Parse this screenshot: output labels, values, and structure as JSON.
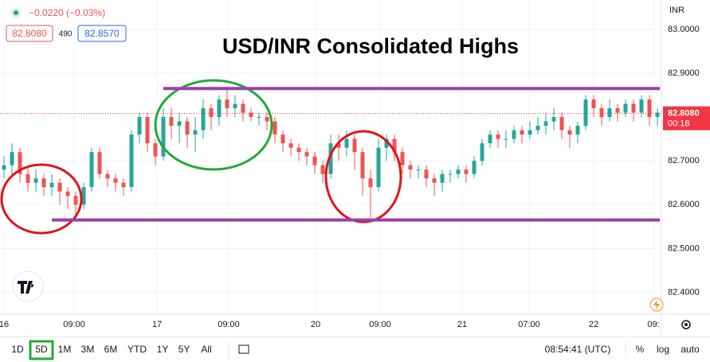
{
  "chart_data": {
    "type": "candlestick",
    "title": "USD/INR Consolidated Highs",
    "currency": "INR",
    "header": {
      "change": "−0.0220 (−0.03%)",
      "sell": "82.8080",
      "spread": "490",
      "buy": "82.8570"
    },
    "price_label": {
      "value": 82.808,
      "label": "82.8080",
      "countdown": "00:18",
      "color": "#f23645"
    },
    "levels": {
      "values": [
        82.865,
        82.565
      ],
      "color": "#9c3fa8"
    },
    "up_color": "#26a69a",
    "down_color": "#ef5350",
    "open": [
      82.68,
      82.69,
      82.72,
      82.67,
      82.65,
      82.66,
      82.64,
      82.65,
      82.63,
      82.62,
      82.6,
      82.64,
      82.72,
      82.67,
      82.66,
      82.65,
      82.64,
      82.76,
      82.8,
      82.74,
      82.71,
      82.8,
      82.78,
      82.79,
      82.76,
      82.77,
      82.82,
      82.8,
      82.84,
      82.82,
      82.83,
      82.81,
      82.8,
      82.8,
      82.79,
      82.76,
      82.74,
      82.73,
      82.72,
      82.71,
      82.69,
      82.67,
      82.74,
      82.73,
      82.75,
      82.72,
      82.66,
      82.64,
      82.73,
      82.75,
      82.72,
      82.69,
      82.68,
      82.68,
      82.66,
      82.65,
      82.67,
      82.67,
      82.68,
      82.67,
      82.7,
      82.74,
      82.76,
      82.75,
      82.75,
      82.77,
      82.76,
      82.77,
      82.78,
      82.79,
      82.8,
      82.77,
      82.76,
      82.78,
      82.84,
      82.82,
      82.8,
      82.82,
      82.81,
      82.83,
      82.81,
      82.84,
      82.8
    ],
    "high": [
      82.71,
      82.74,
      82.73,
      82.69,
      82.68,
      82.67,
      82.67,
      82.66,
      82.64,
      82.63,
      82.65,
      82.73,
      82.73,
      82.68,
      82.67,
      82.66,
      82.77,
      82.81,
      82.81,
      82.75,
      82.82,
      82.82,
      82.81,
      82.8,
      82.8,
      82.84,
      82.83,
      82.85,
      82.87,
      82.85,
      82.84,
      82.82,
      82.81,
      82.81,
      82.8,
      82.77,
      82.75,
      82.74,
      82.73,
      82.72,
      82.7,
      82.76,
      82.76,
      82.77,
      82.76,
      82.73,
      82.68,
      82.75,
      82.76,
      82.76,
      82.73,
      82.7,
      82.69,
      82.69,
      82.67,
      82.68,
      82.68,
      82.69,
      82.69,
      82.71,
      82.75,
      82.77,
      82.77,
      82.77,
      82.78,
      82.78,
      82.79,
      82.8,
      82.81,
      82.82,
      82.81,
      82.78,
      82.79,
      82.85,
      82.85,
      82.83,
      82.84,
      82.83,
      82.84,
      82.84,
      82.85,
      82.85,
      82.82
    ],
    "low": [
      82.66,
      82.67,
      82.65,
      82.63,
      82.63,
      82.62,
      82.62,
      82.6,
      82.59,
      82.57,
      82.59,
      82.63,
      82.66,
      82.64,
      82.63,
      82.62,
      82.63,
      82.74,
      82.72,
      82.69,
      82.7,
      82.75,
      82.74,
      82.73,
      82.72,
      82.75,
      82.77,
      82.78,
      82.8,
      82.8,
      82.79,
      82.79,
      82.78,
      82.77,
      82.74,
      82.72,
      82.71,
      82.7,
      82.69,
      82.67,
      82.65,
      82.66,
      82.7,
      82.71,
      82.68,
      82.62,
      82.57,
      82.63,
      82.7,
      82.7,
      82.67,
      82.66,
      82.66,
      82.64,
      82.62,
      82.63,
      82.65,
      82.66,
      82.65,
      82.66,
      82.69,
      82.73,
      82.73,
      82.73,
      82.74,
      82.74,
      82.75,
      82.76,
      82.76,
      82.77,
      82.75,
      82.73,
      82.74,
      82.77,
      82.8,
      82.78,
      82.79,
      82.79,
      82.8,
      82.79,
      82.8,
      82.78,
      82.78
    ],
    "close": [
      82.69,
      82.72,
      82.67,
      82.65,
      82.66,
      82.64,
      82.65,
      82.63,
      82.62,
      82.6,
      82.64,
      82.72,
      82.67,
      82.66,
      82.65,
      82.64,
      82.76,
      82.8,
      82.74,
      82.71,
      82.8,
      82.78,
      82.79,
      82.76,
      82.77,
      82.82,
      82.8,
      82.84,
      82.82,
      82.83,
      82.81,
      82.8,
      82.8,
      82.79,
      82.76,
      82.74,
      82.73,
      82.72,
      82.71,
      82.69,
      82.67,
      82.74,
      82.73,
      82.75,
      82.72,
      82.66,
      82.64,
      82.73,
      82.75,
      82.72,
      82.69,
      82.68,
      82.68,
      82.66,
      82.65,
      82.67,
      82.67,
      82.68,
      82.67,
      82.7,
      82.74,
      82.76,
      82.75,
      82.75,
      82.77,
      82.76,
      82.77,
      82.78,
      82.79,
      82.8,
      82.77,
      82.76,
      82.78,
      82.84,
      82.82,
      82.8,
      82.82,
      82.81,
      82.83,
      82.81,
      82.84,
      82.8,
      82.81
    ],
    "xlim": [
      -0.5,
      82.5
    ],
    "xticks": [
      {
        "value": 0,
        "label": "16"
      },
      {
        "value": 8.8,
        "label": "09:00"
      },
      {
        "value": 19.2,
        "label": "17"
      },
      {
        "value": 28.2,
        "label": "09:00"
      },
      {
        "value": 39.1,
        "label": "20"
      },
      {
        "value": 47.2,
        "label": "09:00"
      },
      {
        "value": 57.5,
        "label": "21"
      },
      {
        "value": 65.9,
        "label": "07:00"
      },
      {
        "value": 74,
        "label": "22"
      },
      {
        "value": 81.5,
        "label": "09:"
      }
    ],
    "ylim": [
      82.35,
      83.067
    ],
    "yticks": [
      {
        "value": 82.4,
        "label": "82.4000"
      },
      {
        "value": 82.5,
        "label": "82.5000"
      },
      {
        "value": 82.6,
        "label": "82.6000"
      },
      {
        "value": 82.7,
        "label": "82.7000"
      },
      {
        "value": 82.9,
        "label": "82.9000"
      },
      {
        "value": 83,
        "label": "83.0000"
      }
    ],
    "grid": true,
    "toolbar": {
      "ranges": [
        "1D",
        "5D",
        "1M",
        "3M",
        "6M",
        "YTD",
        "1Y",
        "5Y",
        "All"
      ],
      "active": 1,
      "time": "08:54:41 (UTC)",
      "options": [
        "%",
        "log",
        "auto"
      ]
    }
  }
}
